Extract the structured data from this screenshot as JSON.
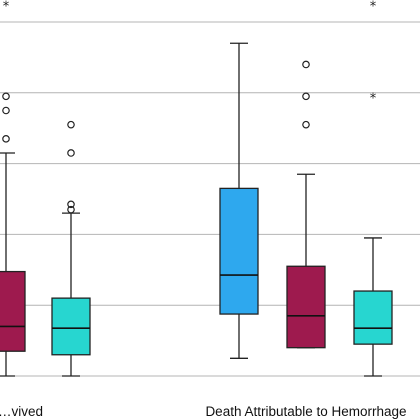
{
  "chart_data": {
    "type": "box",
    "categories": [
      "…vived",
      "Death Attributable to Hemorrhage"
    ],
    "ylim": [
      0,
      106
    ],
    "grid": true,
    "colors": {
      "blue": "#2ea8ee",
      "magenta": "#9e1a4e",
      "cyan": "#27d6d0"
    },
    "boxes": [
      {
        "category": 0,
        "color": "magenta",
        "min": 0,
        "q1": 7,
        "median": 14,
        "q3": 29.5,
        "max": 63,
        "outliers": [
          67,
          75,
          79
        ],
        "extremes": [
          105
        ]
      },
      {
        "category": 0,
        "color": "cyan",
        "min": 0,
        "q1": 6,
        "median": 13.5,
        "q3": 22,
        "max": 46,
        "outliers": [
          47,
          48.5,
          63,
          71
        ],
        "extremes": []
      },
      {
        "category": 1,
        "color": "blue",
        "min": 5,
        "q1": 17.5,
        "median": 28.5,
        "q3": 53,
        "max": 94,
        "outliers": [],
        "extremes": []
      },
      {
        "category": 1,
        "color": "magenta",
        "min": 8,
        "q1": 8,
        "median": 17,
        "q3": 31,
        "max": 57,
        "outliers": [
          71,
          79,
          88
        ],
        "extremes": []
      },
      {
        "category": 1,
        "color": "cyan",
        "min": 0,
        "q1": 9,
        "median": 13.5,
        "q3": 24,
        "max": 39,
        "outliers": [],
        "extremes": [
          79,
          105
        ]
      }
    ]
  }
}
